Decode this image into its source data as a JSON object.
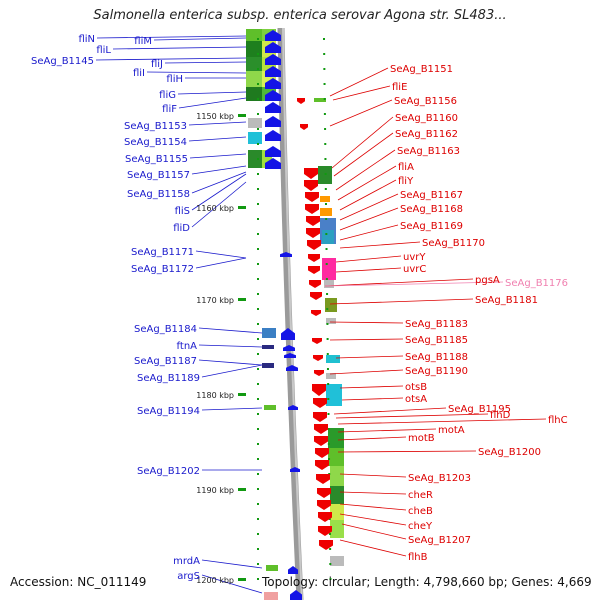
{
  "title": "Salmonella enterica subsp. enterica serovar Agona str. SL483...",
  "footer": {
    "accession": "Accession: NC_011149",
    "summary": "Topology: circular; Length: 4,798,660 bp; Genes: 4,669"
  },
  "colors": {
    "plus_strand_label": "#1a1acc",
    "minus_strand_label": "#dd0000",
    "plus_arrow": "#1414e6",
    "minus_arrow": "#ee0000",
    "faded_label": "#f080b0",
    "axis_line": "#999999",
    "tick": "#119911"
  },
  "scale_labels": [
    "1150 kbp",
    "1160 kbp",
    "1170 kbp",
    "1180 kbp",
    "1190 kbp",
    "1200 kbp"
  ],
  "left_labels": [
    "fliN",
    "fliM",
    "fliL",
    "SeAg_B1145",
    "fliJ",
    "fliI",
    "fliH",
    "fliG",
    "fliF",
    "SeAg_B1153",
    "SeAg_B1154",
    "SeAg_B1155",
    "SeAg_B1157",
    "SeAg_B1158",
    "fliS",
    "fliD",
    "SeAg_B1171",
    "SeAg_B1172",
    "SeAg_B1184",
    "ftnA",
    "SeAg_B1187",
    "SeAg_B1189",
    "SeAg_B1194",
    "SeAg_B1202",
    "mrdA",
    "argS"
  ],
  "right_labels": [
    "SeAg_B1151",
    "fliE",
    "SeAg_B1156",
    "SeAg_B1160",
    "SeAg_B1162",
    "SeAg_B1163",
    "fliA",
    "fliY",
    "SeAg_B1167",
    "SeAg_B1168",
    "SeAg_B1169",
    "SeAg_B1170",
    "uvrY",
    "uvrC",
    "pgsA",
    "SeAg_B1176",
    "SeAg_B1181",
    "SeAg_B1183",
    "SeAg_B1185",
    "SeAg_B1188",
    "SeAg_B1190",
    "otsB",
    "otsA",
    "SeAg_B1195",
    "flhD",
    "flhC",
    "motA",
    "motB",
    "SeAg_B1200",
    "SeAg_B1203",
    "cheR",
    "cheB",
    "cheY",
    "SeAg_B1207",
    "flhB"
  ]
}
